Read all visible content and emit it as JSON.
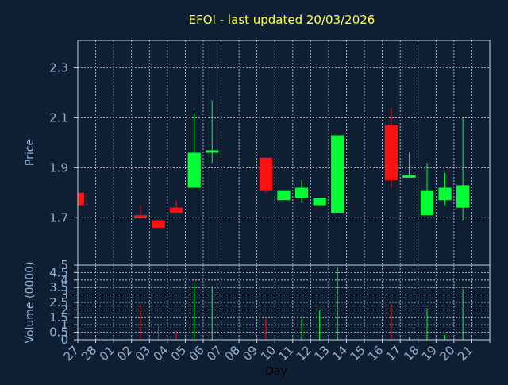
{
  "title": "EFOI - last updated 20/03/2026",
  "chart_data": [
    {
      "type": "candlestick",
      "title": "EFOI - last updated 20/03/2026",
      "ylabel": "Price",
      "ylim": [
        1.51,
        2.41
      ],
      "yticks": [
        1.7,
        1.9,
        2.1,
        2.3
      ],
      "grid": true,
      "up_color": "#00ff33",
      "down_color": "#ff1111",
      "candles": [
        {
          "day": "27",
          "open": 1.8,
          "high": 1.8,
          "low": 1.75,
          "close": 1.75
        },
        {
          "day": "02",
          "open": 1.71,
          "high": 1.75,
          "low": 1.7,
          "close": 1.7
        },
        {
          "day": "03",
          "open": 1.69,
          "high": 1.69,
          "low": 1.66,
          "close": 1.66
        },
        {
          "day": "04",
          "open": 1.74,
          "high": 1.77,
          "low": 1.72,
          "close": 1.72
        },
        {
          "day": "05",
          "open": 1.82,
          "high": 2.12,
          "low": 1.82,
          "close": 1.96
        },
        {
          "day": "06",
          "open": 1.96,
          "high": 2.17,
          "low": 1.92,
          "close": 1.97
        },
        {
          "day": "09",
          "open": 1.94,
          "high": 1.94,
          "low": 1.8,
          "close": 1.81
        },
        {
          "day": "10",
          "open": 1.77,
          "high": 1.81,
          "low": 1.77,
          "close": 1.81
        },
        {
          "day": "11",
          "open": 1.78,
          "high": 1.85,
          "low": 1.76,
          "close": 1.82
        },
        {
          "day": "12",
          "open": 1.75,
          "high": 1.78,
          "low": 1.75,
          "close": 1.78
        },
        {
          "day": "13",
          "open": 1.72,
          "high": 2.03,
          "low": 1.72,
          "close": 2.03
        },
        {
          "day": "16",
          "open": 2.07,
          "high": 2.14,
          "low": 1.82,
          "close": 1.85
        },
        {
          "day": "17",
          "open": 1.86,
          "high": 1.96,
          "low": 1.86,
          "close": 1.87
        },
        {
          "day": "18",
          "open": 1.71,
          "high": 1.92,
          "low": 1.71,
          "close": 1.81
        },
        {
          "day": "19",
          "open": 1.77,
          "high": 1.88,
          "low": 1.75,
          "close": 1.82
        },
        {
          "day": "20",
          "open": 1.74,
          "high": 2.1,
          "low": 1.69,
          "close": 1.83
        }
      ]
    },
    {
      "type": "bar",
      "ylabel": "Volume (0000)",
      "xlabel": "Day",
      "ylim": [
        0,
        5
      ],
      "yticks": [
        "0",
        "0.5",
        "1",
        "1.5",
        "2",
        "2.5",
        "3",
        "3.5",
        "4",
        "4.5",
        "5"
      ],
      "grid": true,
      "categories": [
        "27",
        "28",
        "01",
        "02",
        "03",
        "04",
        "05",
        "06",
        "07",
        "08",
        "09",
        "10",
        "11",
        "12",
        "13",
        "14",
        "15",
        "16",
        "17",
        "18",
        "19",
        "20",
        "21"
      ],
      "volumes": [
        {
          "day": "02",
          "value": 2.4,
          "color": "#ff1111"
        },
        {
          "day": "03",
          "value": 0.9,
          "color": "#ff1111"
        },
        {
          "day": "04",
          "value": 0.6,
          "color": "#ff1111"
        },
        {
          "day": "05",
          "value": 3.8,
          "color": "#00ff33"
        },
        {
          "day": "06",
          "value": 3.6,
          "color": "#00ff33"
        },
        {
          "day": "09",
          "value": 1.4,
          "color": "#ff1111"
        },
        {
          "day": "11",
          "value": 1.4,
          "color": "#00ff33"
        },
        {
          "day": "12",
          "value": 2.0,
          "color": "#00ff33"
        },
        {
          "day": "13",
          "value": 4.9,
          "color": "#00ff33"
        },
        {
          "day": "16",
          "value": 2.4,
          "color": "#ff1111"
        },
        {
          "day": "17",
          "value": 0.2,
          "color": "#00ff33"
        },
        {
          "day": "18",
          "value": 2.1,
          "color": "#00ff33"
        },
        {
          "day": "19",
          "value": 0.3,
          "color": "#00ff33"
        },
        {
          "day": "20",
          "value": 3.4,
          "color": "#00ff33"
        }
      ]
    }
  ]
}
